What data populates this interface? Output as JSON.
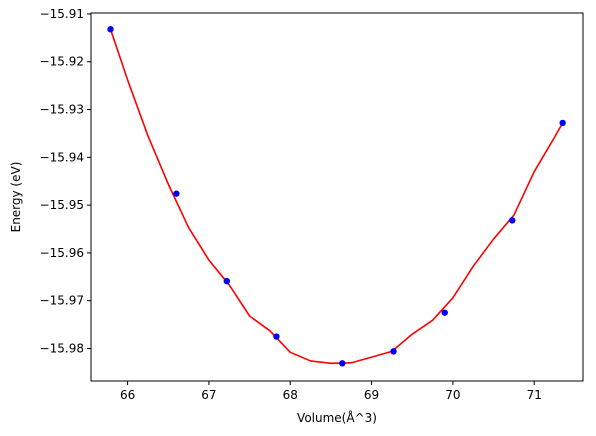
{
  "chart_data": {
    "type": "scatter",
    "title": "",
    "xlabel": "Volume(Å^3)",
    "ylabel": "Energy (eV)",
    "xlim": [
      65.55,
      71.6
    ],
    "ylim": [
      -15.9868,
      -15.9098
    ],
    "xticks": [
      66,
      67,
      68,
      69,
      70,
      71
    ],
    "yticks": [
      -15.91,
      -15.92,
      -15.93,
      -15.94,
      -15.95,
      -15.96,
      -15.97,
      -15.98
    ],
    "xtick_labels": [
      "66",
      "67",
      "68",
      "69",
      "70",
      "71"
    ],
    "ytick_labels": [
      "−15.91",
      "−15.92",
      "−15.93",
      "−15.94",
      "−15.95",
      "−15.96",
      "−15.97",
      "−15.98"
    ],
    "grid": false,
    "series": [
      {
        "kind": "scatter",
        "color": "#0000ff",
        "x": [
          65.79,
          66.6,
          67.22,
          67.83,
          68.64,
          69.27,
          69.9,
          70.73,
          71.35
        ],
        "y": [
          -15.9132,
          -15.9476,
          -15.9659,
          -15.9775,
          -15.9831,
          -15.9806,
          -15.9725,
          -15.9532,
          -15.9328
        ]
      },
      {
        "kind": "fit-line",
        "color": "#ff0000",
        "x": [
          65.79,
          66.0,
          66.25,
          66.5,
          66.75,
          67.0,
          67.25,
          67.5,
          67.75,
          68.0,
          68.25,
          68.5,
          68.75,
          69.0,
          69.25,
          69.5,
          69.75,
          70.0,
          70.25,
          70.5,
          70.75,
          71.0,
          71.25,
          71.35
        ],
        "y": [
          -15.9132,
          -15.9238,
          -15.9355,
          -15.9456,
          -15.9547,
          -15.9615,
          -15.9667,
          -15.9732,
          -15.9763,
          -15.9808,
          -15.9826,
          -15.9831,
          -15.983,
          -15.9818,
          -15.9806,
          -15.977,
          -15.9741,
          -15.9694,
          -15.9628,
          -15.9571,
          -15.9521,
          -15.943,
          -15.9358,
          -15.9328
        ]
      }
    ]
  }
}
